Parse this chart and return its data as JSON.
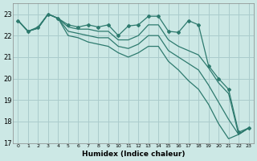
{
  "xlabel": "Humidex (Indice chaleur)",
  "ylabel": "",
  "xlim": [
    -0.5,
    23.5
  ],
  "ylim": [
    17,
    23.5
  ],
  "yticks": [
    17,
    18,
    19,
    20,
    21,
    22,
    23
  ],
  "xticks": [
    0,
    1,
    2,
    3,
    4,
    5,
    6,
    7,
    8,
    9,
    10,
    11,
    12,
    13,
    14,
    15,
    16,
    17,
    18,
    19,
    20,
    21,
    22,
    23
  ],
  "bg_color": "#cce8e5",
  "grid_color": "#aacccc",
  "line_color": "#2d7a6e",
  "series_jagged": [
    22.7,
    22.2,
    22.4,
    23.0,
    22.8,
    22.5,
    22.4,
    22.5,
    22.4,
    22.5,
    22.0,
    22.45,
    22.5,
    22.9,
    22.9,
    22.2,
    22.15,
    22.7,
    22.5,
    20.6,
    20.0,
    19.5,
    17.5,
    17.7
  ],
  "series_straight": [
    [
      22.7,
      22.2,
      22.35,
      23.0,
      22.8,
      22.4,
      22.3,
      22.3,
      22.2,
      22.2,
      21.8,
      21.8,
      22.0,
      22.5,
      22.5,
      21.8,
      21.5,
      21.3,
      21.1,
      20.5,
      19.8,
      19.3,
      17.4,
      17.7
    ],
    [
      22.7,
      22.2,
      22.35,
      23.0,
      22.8,
      22.2,
      22.1,
      22.0,
      21.9,
      21.9,
      21.5,
      21.4,
      21.6,
      22.0,
      22.0,
      21.3,
      21.0,
      20.7,
      20.4,
      19.7,
      18.9,
      18.1,
      17.4,
      17.7
    ],
    [
      22.7,
      22.2,
      22.35,
      23.0,
      22.8,
      22.0,
      21.9,
      21.7,
      21.6,
      21.5,
      21.2,
      21.0,
      21.2,
      21.5,
      21.5,
      20.8,
      20.4,
      19.9,
      19.5,
      18.8,
      17.9,
      17.2,
      17.4,
      17.7
    ]
  ]
}
